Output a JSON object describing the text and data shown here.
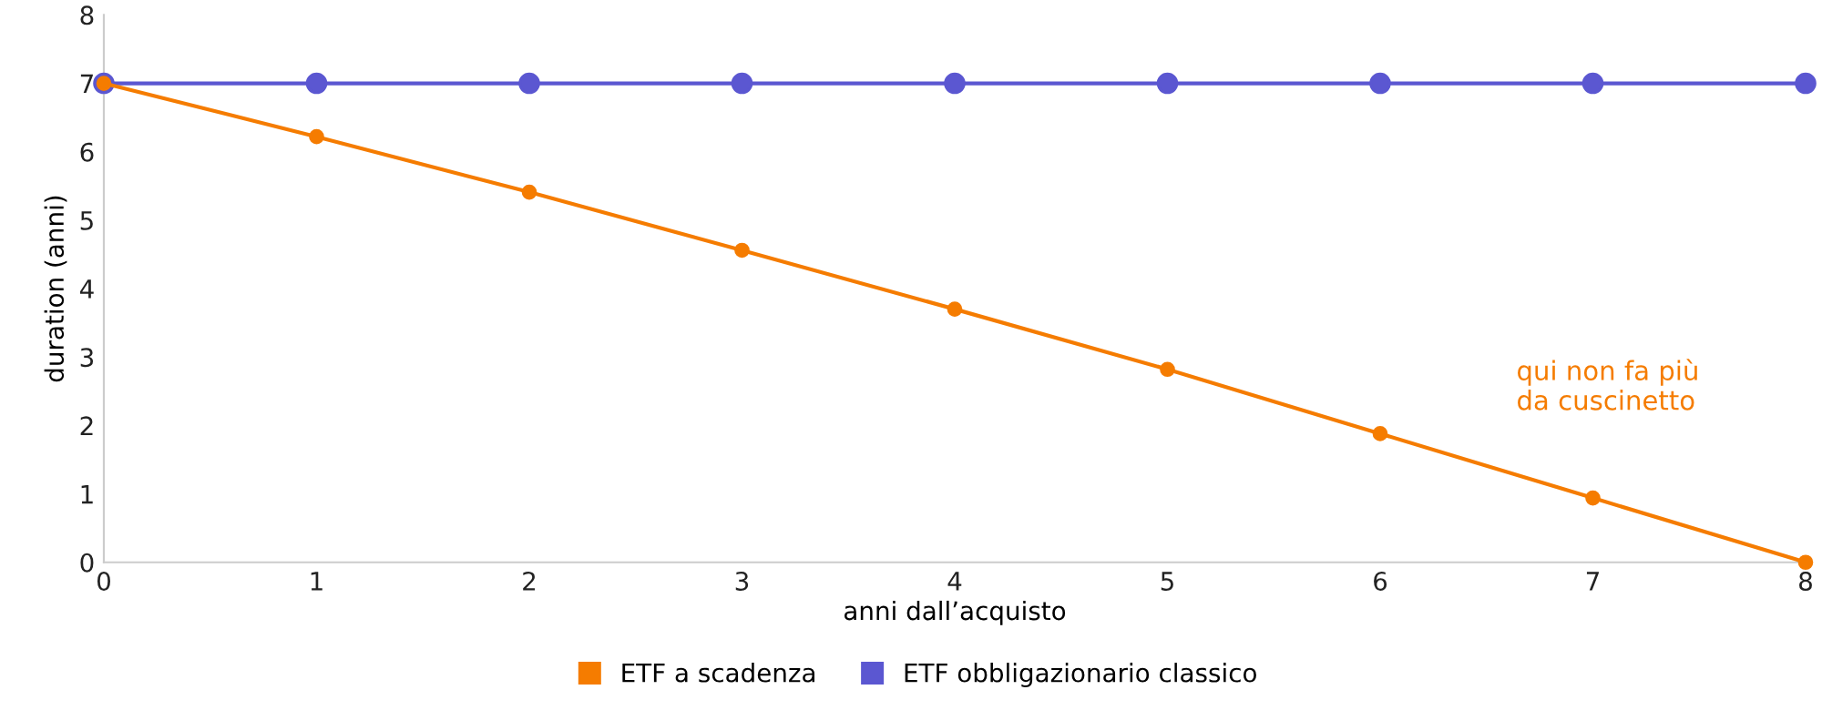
{
  "chart_data": {
    "type": "line",
    "xlabel": "anni dall’acquisto",
    "ylabel": "duration (anni)",
    "x": [
      0,
      1,
      2,
      3,
      4,
      5,
      6,
      7,
      8
    ],
    "series": [
      {
        "name": "ETF a scadenza",
        "color": "#f57c00",
        "values": [
          7,
          6.22,
          5.41,
          4.56,
          3.7,
          2.82,
          1.88,
          0.94,
          0
        ]
      },
      {
        "name": "ETF obbligazionario classico",
        "color": "#5b57d1",
        "values": [
          7,
          7,
          7,
          7,
          7,
          7,
          7,
          7,
          7
        ]
      }
    ],
    "annotations": [
      "qui non fa più\nda cuscinetto"
    ],
    "xlim": [
      0,
      8
    ],
    "xticks": [
      0,
      1,
      2,
      3,
      4,
      5,
      6,
      7,
      8
    ],
    "ylim": [
      0,
      8
    ],
    "yticks": [
      0,
      1,
      2,
      3,
      4,
      5,
      6,
      7,
      8
    ],
    "grid": false,
    "legend": "bottom",
    "marker": "circle",
    "line_style": "solid"
  }
}
